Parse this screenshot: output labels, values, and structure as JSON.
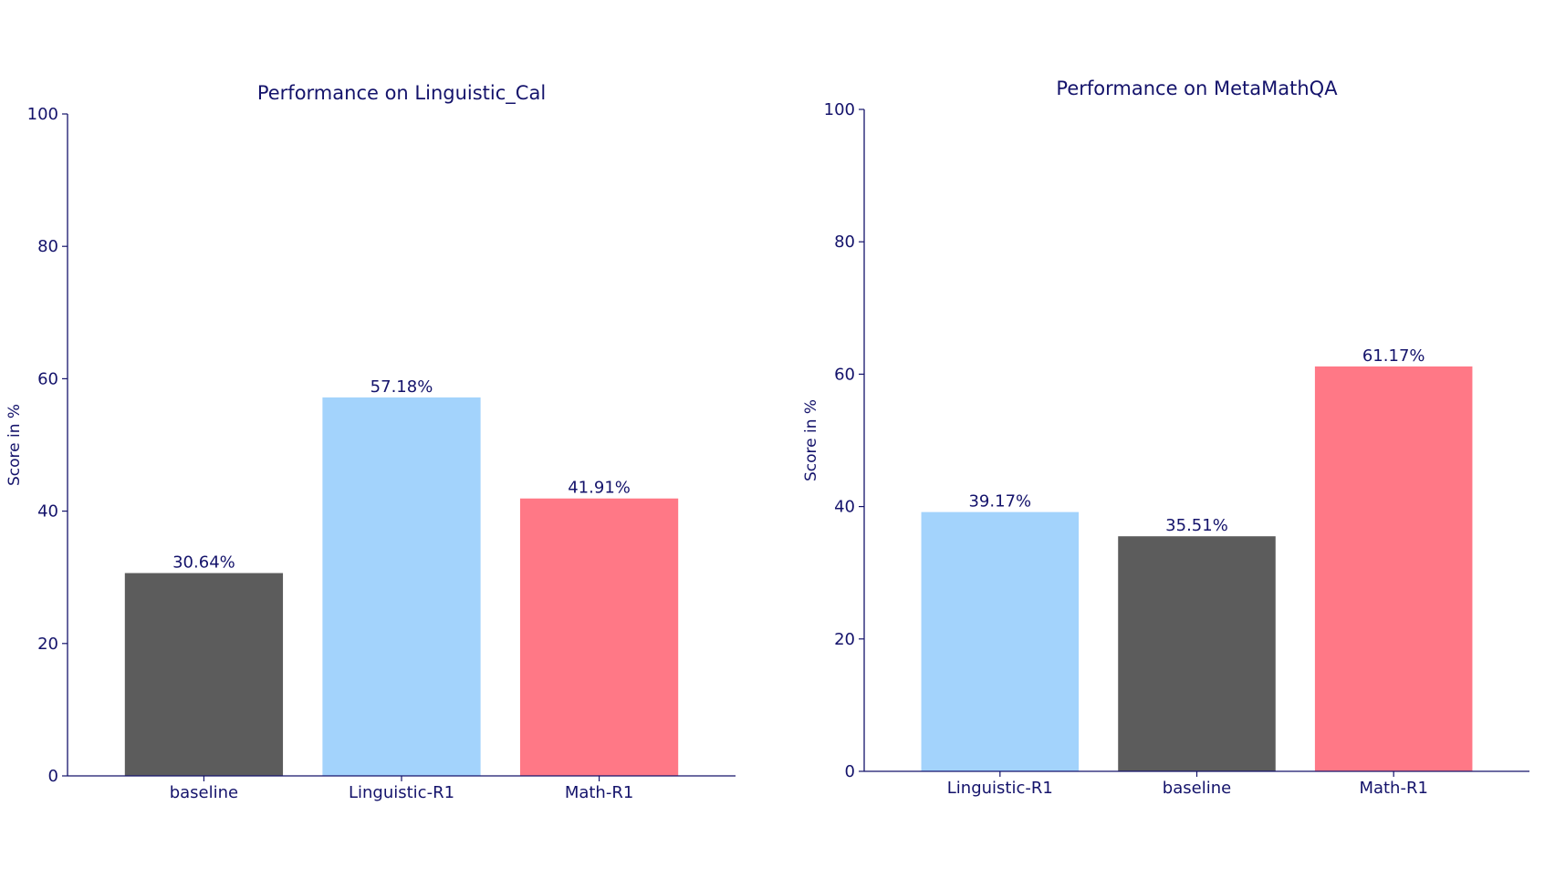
{
  "colors": {
    "text": "#14136b",
    "axis": "#14136b",
    "baseline": "#5c5c5c",
    "linguistic": "#a3d3fc",
    "math": "#ff7886"
  },
  "chart_data": [
    {
      "type": "bar",
      "title": "Performance on Linguistic_Cal",
      "xlabel": "",
      "ylabel": "Score in %",
      "ylim": [
        0,
        100
      ],
      "yticks": [
        "0",
        "20",
        "40",
        "60",
        "80",
        "100"
      ],
      "categories": [
        "baseline",
        "Linguistic-R1",
        "Math-R1"
      ],
      "values": [
        30.64,
        57.18,
        41.91
      ],
      "value_labels": [
        "30.64%",
        "57.18%",
        "41.91%"
      ],
      "bar_colors": [
        "#5c5c5c",
        "#a3d3fc",
        "#ff7886"
      ],
      "grid": false,
      "legend": "none"
    },
    {
      "type": "bar",
      "title": "Performance on MetaMathQA",
      "xlabel": "",
      "ylabel": "Score in %",
      "ylim": [
        0,
        100
      ],
      "yticks": [
        "0",
        "20",
        "40",
        "60",
        "80",
        "100"
      ],
      "categories": [
        "Linguistic-R1",
        "baseline",
        "Math-R1"
      ],
      "values": [
        39.17,
        35.51,
        61.17
      ],
      "value_labels": [
        "39.17%",
        "35.51%",
        "61.17%"
      ],
      "bar_colors": [
        "#a3d3fc",
        "#5c5c5c",
        "#ff7886"
      ],
      "grid": false,
      "legend": "none"
    }
  ]
}
